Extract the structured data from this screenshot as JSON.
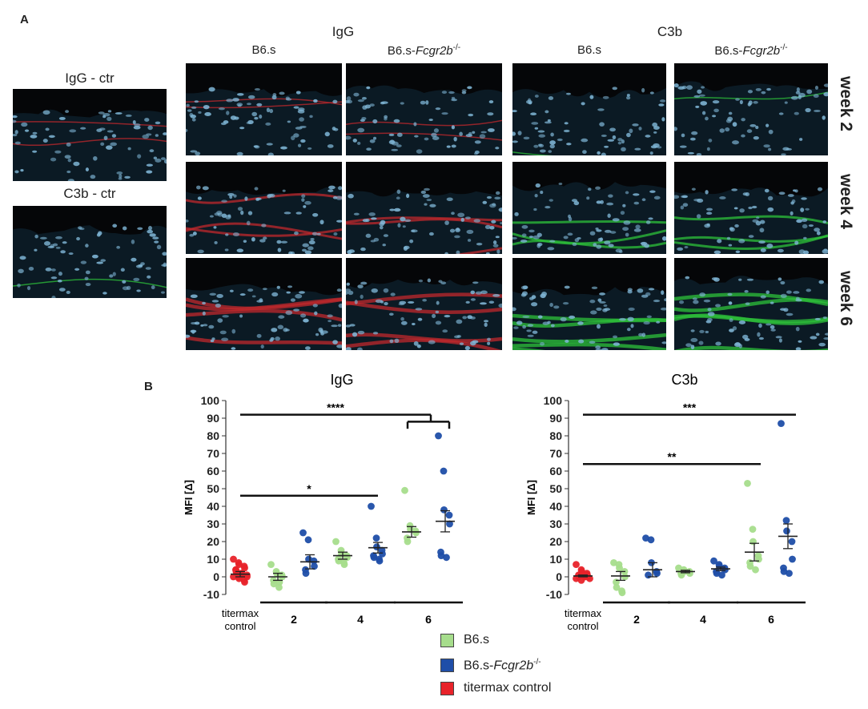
{
  "panelA": {
    "letter": "A",
    "groups": [
      {
        "title": "IgG",
        "cols": [
          {
            "base": "B6.s",
            "italic": "",
            "sup": ""
          },
          {
            "base": "B6.s-",
            "italic": "Fcgr2b",
            "sup": "-/-"
          }
        ]
      },
      {
        "title": "C3b",
        "cols": [
          {
            "base": "B6.s",
            "italic": "",
            "sup": ""
          },
          {
            "base": "B6.s-",
            "italic": "Fcgr2b",
            "sup": "-/-"
          }
        ]
      }
    ],
    "weeks": [
      "week 2",
      "week 4",
      "week 6"
    ],
    "controls": [
      {
        "title": "IgG - ctr"
      },
      {
        "title": "C3b - ctr"
      }
    ]
  },
  "panelB": {
    "letter": "B",
    "colors": {
      "b6s": "#a6dd8c",
      "fcgr": "#1f4ea8",
      "control": "#e8232a"
    },
    "legend": [
      {
        "label": "B6.s",
        "italic": "",
        "sup": "",
        "color": "#a6dd8c"
      },
      {
        "label": "B6.s-",
        "italic": "Fcgr2b",
        "sup": "-/-",
        "color": "#1f4ea8"
      },
      {
        "label": "titermax control",
        "italic": "",
        "sup": "",
        "color": "#e8232a"
      }
    ],
    "x_group_labels": {
      "control_line1": "titermax",
      "control_line2": "control",
      "weeks": [
        "2",
        "4",
        "6"
      ]
    }
  },
  "chart_data": [
    {
      "type": "scatter",
      "title": "IgG",
      "ylabel": "MFI [Δ]",
      "ylim": [
        -10,
        100
      ],
      "yticks": [
        -10,
        0,
        10,
        20,
        30,
        40,
        50,
        60,
        70,
        80,
        90,
        100
      ],
      "groups": [
        {
          "name": "titermax control",
          "week": "control",
          "color": "control",
          "mean": 1.5,
          "sem": 1.5,
          "values": [
            10,
            8,
            7,
            6,
            5,
            4,
            3,
            2,
            1.5,
            1,
            0,
            0,
            -1,
            -2,
            -3,
            4,
            3,
            2,
            1,
            0
          ]
        },
        {
          "name": "B6.s",
          "week": "2",
          "color": "b6s",
          "mean": 0,
          "sem": 2,
          "values": [
            7,
            3,
            2,
            1,
            0,
            -2,
            -4,
            -6,
            -3
          ]
        },
        {
          "name": "B6.s-Fcgr2b-/-",
          "week": "2",
          "color": "fcgr",
          "mean": 8.5,
          "sem": 4,
          "values": [
            25,
            21,
            10,
            9,
            6,
            4,
            2
          ]
        },
        {
          "name": "B6.s",
          "week": "4",
          "color": "b6s",
          "mean": 12,
          "sem": 2,
          "values": [
            20,
            15,
            13,
            12,
            11,
            10,
            9,
            8,
            7
          ]
        },
        {
          "name": "B6.s-Fcgr2b-/-",
          "week": "4",
          "color": "fcgr",
          "mean": 16.5,
          "sem": 3,
          "values": [
            40,
            22,
            17,
            15,
            13,
            12,
            11,
            10,
            9
          ]
        },
        {
          "name": "B6.s",
          "week": "6",
          "color": "b6s",
          "mean": 25.5,
          "sem": 3,
          "values": [
            49,
            29,
            27,
            26,
            25,
            22,
            20
          ]
        },
        {
          "name": "B6.s-Fcgr2b-/-",
          "week": "6",
          "color": "fcgr",
          "mean": 31.5,
          "sem": 6,
          "values": [
            80,
            60,
            38,
            35,
            30,
            14,
            12,
            11
          ]
        }
      ],
      "significance": [
        {
          "label": "****",
          "y": 92,
          "from": "control",
          "to": "week6-bracket"
        },
        {
          "label": "*",
          "y": 46,
          "from": "control",
          "to": "week4-fcgr"
        }
      ]
    },
    {
      "type": "scatter",
      "title": "C3b",
      "ylabel": "MFI [Δ]",
      "ylim": [
        -10,
        100
      ],
      "yticks": [
        -10,
        0,
        10,
        20,
        30,
        40,
        50,
        60,
        70,
        80,
        90,
        100
      ],
      "groups": [
        {
          "name": "titermax control",
          "week": "control",
          "color": "control",
          "mean": 0.5,
          "sem": 0.5,
          "values": [
            7,
            4,
            3,
            2,
            1,
            1,
            0,
            0,
            0,
            -1,
            -1,
            -2,
            2,
            1,
            0
          ]
        },
        {
          "name": "B6.s",
          "week": "2",
          "color": "b6s",
          "mean": 0.5,
          "sem": 2.5,
          "values": [
            8,
            7,
            5,
            3,
            0,
            -3,
            -6,
            -8,
            -9
          ]
        },
        {
          "name": "B6.s-Fcgr2b-/-",
          "week": "2",
          "color": "fcgr",
          "mean": 4,
          "sem": 4,
          "values": [
            22,
            21,
            8,
            3,
            2,
            1
          ]
        },
        {
          "name": "B6.s",
          "week": "4",
          "color": "b6s",
          "mean": 3,
          "sem": 0.7,
          "values": [
            5,
            4,
            3,
            3,
            2,
            2,
            1
          ]
        },
        {
          "name": "B6.s-Fcgr2b-/-",
          "week": "4",
          "color": "fcgr",
          "mean": 4.5,
          "sem": 1,
          "values": [
            9,
            7,
            6,
            5,
            4,
            3,
            2,
            1
          ]
        },
        {
          "name": "B6.s",
          "week": "6",
          "color": "b6s",
          "mean": 14,
          "sem": 5,
          "values": [
            53,
            27,
            20,
            12,
            10,
            8,
            6,
            4
          ]
        },
        {
          "name": "B6.s-Fcgr2b-/-",
          "week": "6",
          "color": "fcgr",
          "mean": 23,
          "sem": 7,
          "values": [
            87,
            32,
            26,
            20,
            10,
            5,
            3,
            2
          ]
        }
      ],
      "significance": [
        {
          "label": "***",
          "y": 92,
          "from": "control",
          "to": "week6-fcgr"
        },
        {
          "label": "**",
          "y": 64,
          "from": "control",
          "to": "week6-b6s"
        }
      ]
    }
  ]
}
